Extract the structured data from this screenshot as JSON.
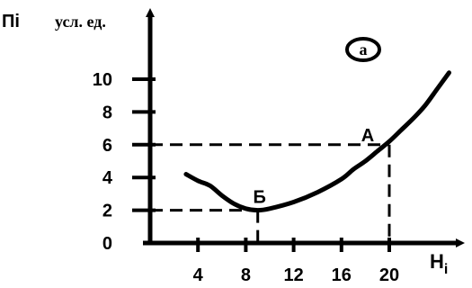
{
  "chart_data": {
    "type": "line",
    "ylabel": "Пі",
    "yunit": "усл. ед.",
    "xlabel": "Н",
    "xlabel_sub": "і",
    "panel_label": "а",
    "x_ticks": [
      4,
      8,
      12,
      16,
      20
    ],
    "y_ticks": [
      0,
      2,
      4,
      6,
      8,
      10
    ],
    "xlim": [
      0,
      26
    ],
    "ylim": [
      0,
      12
    ],
    "series": [
      {
        "x": [
          3,
          4,
          5,
          6,
          7,
          8,
          9,
          10,
          12,
          14,
          16,
          17,
          18,
          19,
          20,
          21,
          22,
          23,
          24,
          25
        ],
        "y": [
          4.2,
          3.8,
          3.5,
          2.9,
          2.4,
          2.1,
          2.0,
          2.1,
          2.5,
          3.1,
          3.9,
          4.5,
          5.0,
          5.6,
          6.2,
          6.9,
          7.6,
          8.4,
          9.4,
          10.4
        ]
      }
    ],
    "points": [
      {
        "label": "Б",
        "x": 9,
        "y": 2
      },
      {
        "label": "А",
        "x": 20,
        "y": 6
      }
    ]
  }
}
